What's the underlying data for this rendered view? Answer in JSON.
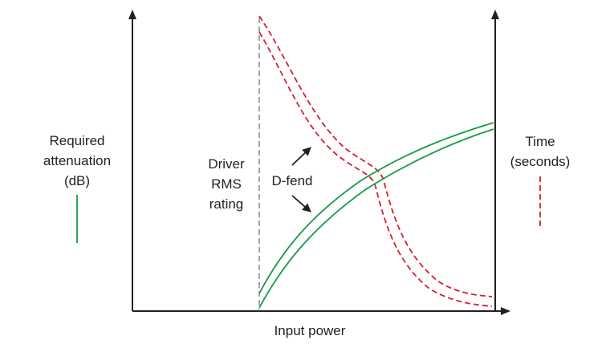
{
  "diagram": {
    "x_axis_label": "Input power",
    "left_axis_label": [
      "Required",
      "attenuation",
      "(dB)"
    ],
    "right_axis_label": [
      "Time",
      "(seconds)"
    ],
    "driver_rating_label": [
      "Driver",
      "RMS",
      "rating"
    ],
    "product_label": "D-fend",
    "colors": {
      "attenuation_curve": "#1a9a48",
      "time_curve": "#d42031",
      "axes": "#231f20",
      "rms_marker": "#777777"
    },
    "icons": [
      "arrow-up-right-icon",
      "arrow-down-right-icon"
    ]
  }
}
